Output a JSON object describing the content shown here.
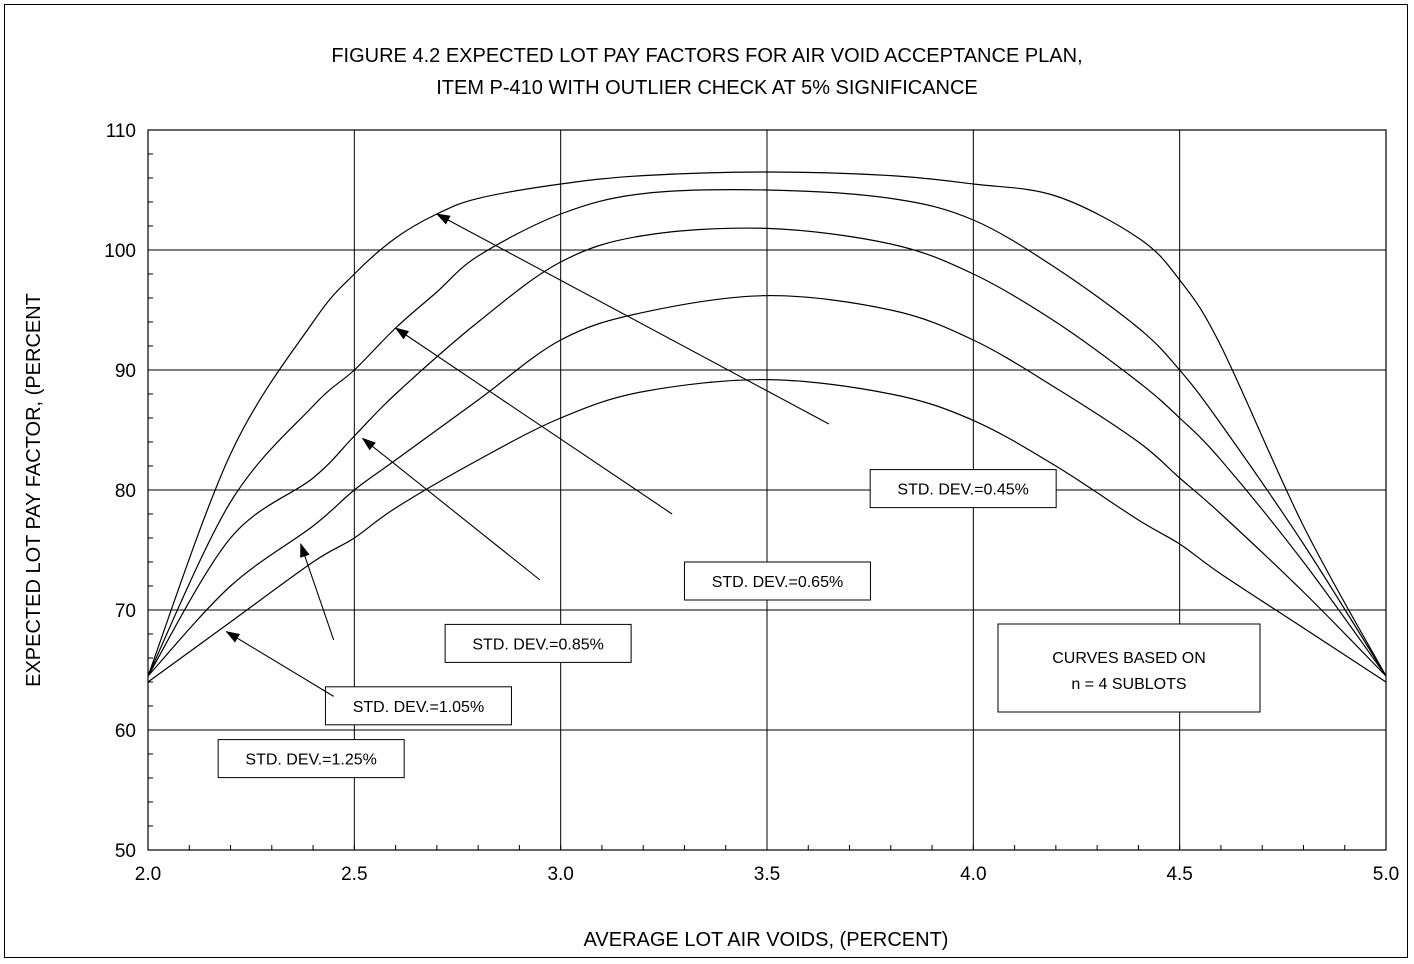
{
  "chart_data": {
    "type": "line",
    "title_line1": "FIGURE 4.2  EXPECTED LOT PAY FACTORS FOR AIR VOID ACCEPTANCE PLAN,",
    "title_line2": "ITEM P-410 WITH OUTLIER CHECK  AT 5% SIGNIFICANCE",
    "xlabel": "AVERAGE LOT AIR VOIDS, (PERCENT)",
    "ylabel": "EXPECTED LOT PAY FACTOR, (PERCENT",
    "xlim": [
      2.0,
      5.0
    ],
    "ylim": [
      50,
      110
    ],
    "x_ticks": [
      "2.0",
      "2.5",
      "3.0",
      "3.5",
      "4.0",
      "4.5",
      "5.0"
    ],
    "y_ticks": [
      "50",
      "60",
      "70",
      "80",
      "90",
      "100",
      "110"
    ],
    "grid": true,
    "series": [
      {
        "name": "STD. DEV.=0.45%",
        "x": [
          2.0,
          2.2,
          2.4,
          2.5,
          2.6,
          2.7,
          2.8,
          3.0,
          3.2,
          3.5,
          3.8,
          4.0,
          4.2,
          4.4,
          4.5,
          4.6,
          4.8,
          5.0
        ],
        "y": [
          64.5,
          83.0,
          94.0,
          98.0,
          101.0,
          103.0,
          104.3,
          105.5,
          106.2,
          106.5,
          106.2,
          105.5,
          104.5,
          101.0,
          97.5,
          92.0,
          77.0,
          64.5
        ]
      },
      {
        "name": "STD. DEV.=0.65%",
        "x": [
          2.0,
          2.2,
          2.4,
          2.5,
          2.6,
          2.7,
          2.8,
          3.0,
          3.2,
          3.5,
          3.8,
          4.0,
          4.2,
          4.4,
          4.5,
          4.6,
          4.8,
          5.0
        ],
        "y": [
          64.5,
          79.0,
          87.0,
          90.0,
          93.5,
          96.5,
          99.5,
          103.0,
          104.7,
          105.0,
          104.3,
          102.5,
          98.5,
          93.5,
          90.0,
          85.5,
          75.5,
          64.5
        ]
      },
      {
        "name": "STD. DEV.=0.85%",
        "x": [
          2.0,
          2.2,
          2.4,
          2.5,
          2.6,
          2.8,
          3.0,
          3.2,
          3.5,
          3.8,
          4.0,
          4.2,
          4.4,
          4.5,
          4.6,
          4.8,
          5.0
        ],
        "y": [
          64.5,
          76.0,
          81.0,
          84.5,
          88.0,
          94.0,
          99.0,
          101.2,
          101.8,
          100.5,
          98.0,
          94.0,
          89.0,
          86.0,
          82.5,
          74.0,
          64.5
        ]
      },
      {
        "name": "STD. DEV.=1.05%",
        "x": [
          2.0,
          2.2,
          2.4,
          2.5,
          2.6,
          2.8,
          3.0,
          3.2,
          3.5,
          3.8,
          4.0,
          4.2,
          4.4,
          4.5,
          4.6,
          4.8,
          5.0
        ],
        "y": [
          64.5,
          72.0,
          77.0,
          80.0,
          82.5,
          87.5,
          92.5,
          94.8,
          96.2,
          95.0,
          92.5,
          88.5,
          84.0,
          81.0,
          78.0,
          71.5,
          64.5
        ]
      },
      {
        "name": "STD. DEV.=1.25%",
        "x": [
          2.0,
          2.2,
          2.4,
          2.5,
          2.6,
          2.8,
          3.0,
          3.2,
          3.5,
          3.8,
          4.0,
          4.2,
          4.4,
          4.5,
          4.6,
          4.8,
          5.0
        ],
        "y": [
          64.0,
          69.0,
          74.0,
          76.0,
          78.5,
          82.5,
          86.0,
          88.2,
          89.2,
          88.0,
          85.8,
          82.0,
          77.5,
          75.5,
          73.0,
          68.5,
          64.0
        ]
      }
    ],
    "annotations": [
      {
        "text": "STD. DEV.=0.45%",
        "label_at": [
          3.75,
          81.7
        ],
        "arrow_tail": [
          3.65,
          85.5
        ],
        "arrow_head": [
          2.7,
          103.0
        ]
      },
      {
        "text": "STD. DEV.=0.65%",
        "label_at": [
          3.3,
          74.0
        ],
        "arrow_tail": [
          3.27,
          78.0
        ],
        "arrow_head": [
          2.6,
          93.5
        ]
      },
      {
        "text": "STD. DEV.=0.85%",
        "label_at": [
          2.72,
          68.8
        ],
        "arrow_tail": [
          2.95,
          72.5
        ],
        "arrow_head": [
          2.52,
          84.3
        ]
      },
      {
        "text": "STD. DEV.=1.05%",
        "label_at": [
          2.43,
          63.6
        ],
        "arrow_tail": [
          2.45,
          67.5
        ],
        "arrow_head": [
          2.37,
          75.5
        ]
      },
      {
        "text": "STD. DEV.=1.25%",
        "label_at": [
          2.17,
          59.2
        ],
        "arrow_tail": [
          2.45,
          62.8
        ],
        "arrow_head": [
          2.19,
          68.2
        ]
      }
    ],
    "note": [
      "CURVES BASED ON",
      "n = 4 SUBLOTS"
    ]
  }
}
